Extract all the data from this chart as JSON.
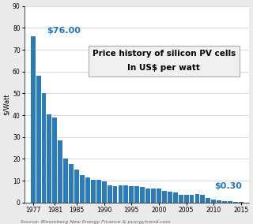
{
  "years": [
    1977,
    1978,
    1979,
    1980,
    1981,
    1982,
    1983,
    1984,
    1985,
    1986,
    1987,
    1988,
    1989,
    1990,
    1991,
    1992,
    1993,
    1994,
    1995,
    1996,
    1997,
    1998,
    1999,
    2000,
    2001,
    2002,
    2003,
    2004,
    2005,
    2006,
    2007,
    2008,
    2009,
    2010,
    2011,
    2012,
    2013,
    2014,
    2015
  ],
  "values": [
    76.0,
    58.0,
    50.0,
    40.5,
    39.0,
    28.5,
    20.0,
    17.5,
    15.0,
    12.5,
    11.5,
    10.5,
    10.5,
    9.5,
    8.0,
    7.5,
    8.0,
    8.0,
    7.5,
    7.5,
    7.0,
    6.5,
    6.5,
    6.5,
    5.5,
    5.0,
    4.5,
    3.5,
    3.5,
    3.5,
    4.0,
    3.5,
    2.0,
    1.5,
    1.0,
    0.6,
    0.5,
    0.4,
    0.3
  ],
  "bar_color": "#2b7bba",
  "ylim": [
    0,
    90
  ],
  "yticks": [
    0,
    10,
    20,
    30,
    40,
    50,
    60,
    70,
    80,
    90
  ],
  "xticks": [
    1977,
    1981,
    1985,
    1990,
    1995,
    2000,
    2005,
    2010,
    2015
  ],
  "ylabel": "$/Watt",
  "title_line1": "Price history of silicon PV cells",
  "title_line2": "In US$ per watt",
  "annotation_first": "$76.00",
  "annotation_last": "$0.30",
  "annotation_color": "#2277bb",
  "source_text": "Source: Bloomberg New Energy Finance & pvxrgytrend.com",
  "background_color": "#ebebeb",
  "plot_bg_color": "#ffffff",
  "box_facecolor": "#f0f0f0",
  "box_edgecolor": "#aaaaaa",
  "title_fontsize": 7.5,
  "subtitle_fontsize": 6,
  "annotation_fontsize": 8,
  "source_fontsize": 4.5,
  "ylabel_fontsize": 6,
  "tick_fontsize": 5.5
}
